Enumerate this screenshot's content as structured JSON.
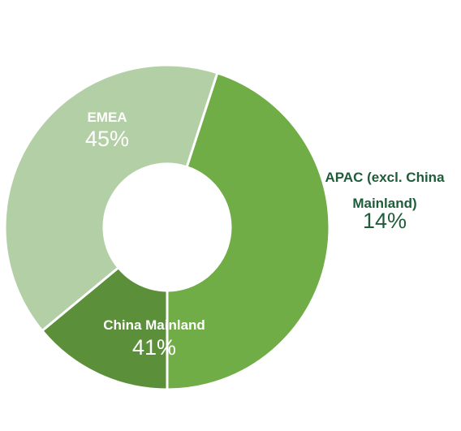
{
  "chart_data": {
    "type": "pie",
    "donut": true,
    "title": "",
    "categories": [
      "EMEA",
      "APAC (excl. China Mainland)",
      "China Mainland"
    ],
    "values": [
      45,
      14,
      41
    ],
    "value_labels": [
      "45%",
      "14%",
      "41%"
    ],
    "label_lines": [
      [
        "EMEA"
      ],
      [
        "APAC (excl. China",
        "Mainland)"
      ],
      [
        "China Mainland"
      ]
    ],
    "colors": [
      "#70ad47",
      "#5b8f3a",
      "#b3cfa6"
    ],
    "label_colors": [
      "#ffffff",
      "#1e5c3a",
      "#ffffff"
    ],
    "legend": "none",
    "start_angle_deg": 72,
    "direction": "clockwise"
  }
}
